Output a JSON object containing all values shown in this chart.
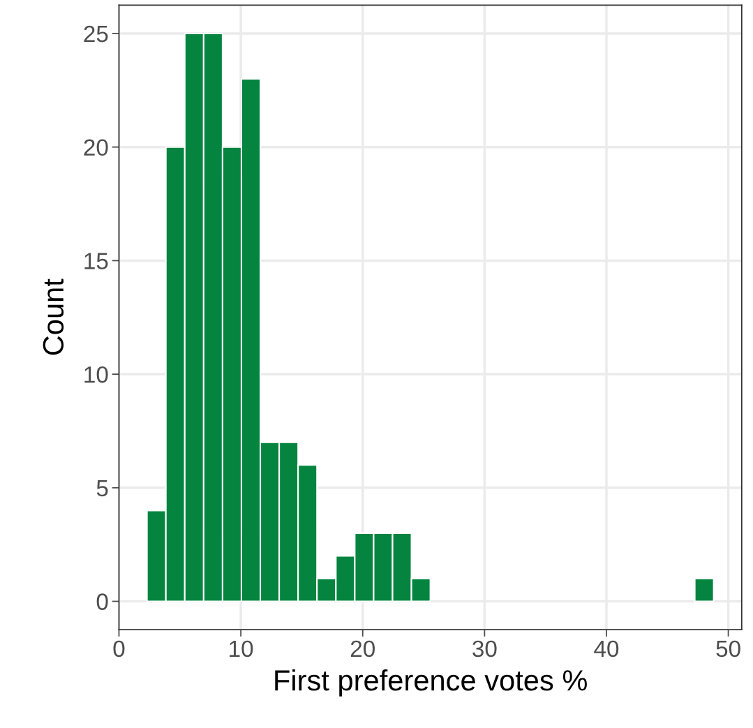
{
  "chart_data": {
    "type": "histogram",
    "xlabel": "First preference votes %",
    "ylabel": "Count",
    "bins": [
      2.3,
      3.85,
      5.4,
      6.95,
      8.5,
      10.05,
      11.6,
      13.15,
      14.7,
      16.25,
      17.8,
      19.35,
      20.9,
      22.45,
      24.0,
      25.55,
      27.1,
      28.65,
      30.2,
      31.75,
      33.3,
      34.85,
      36.4,
      37.95,
      39.5,
      41.05,
      42.6,
      44.15,
      45.7,
      47.25,
      48.8
    ],
    "values": [
      4,
      20,
      25,
      25,
      20,
      23,
      7,
      7,
      6,
      1,
      2,
      3,
      3,
      3,
      1,
      0,
      0,
      0,
      0,
      0,
      0,
      0,
      0,
      0,
      0,
      0,
      0,
      0,
      0,
      1
    ],
    "color": "#05843f",
    "xlim": [
      0,
      51.1
    ],
    "xticks": [
      0,
      10,
      20,
      30,
      40,
      50
    ],
    "ylim": [
      -1.25,
      26.25
    ],
    "yticks": [
      0,
      5,
      10,
      15,
      20,
      25
    ],
    "grid": true
  }
}
